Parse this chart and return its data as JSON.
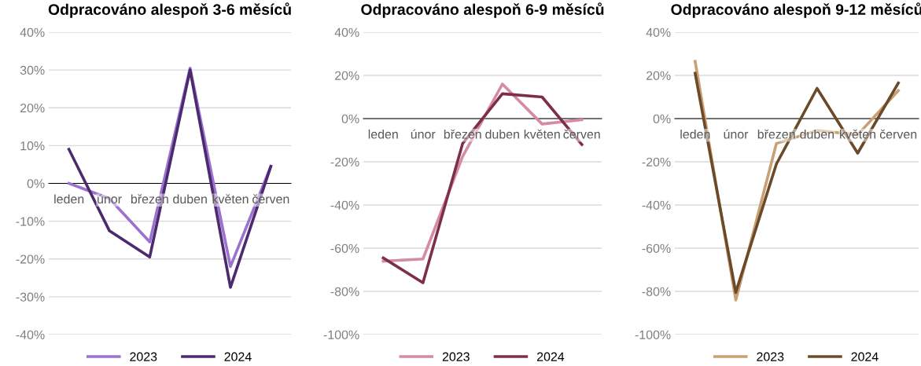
{
  "chart_data": [
    {
      "type": "line",
      "title": "Odpracováno alespoň 3-6 měsíců",
      "categories": [
        "leden",
        "únor",
        "březen",
        "duben",
        "květen",
        "červen"
      ],
      "series": [
        {
          "name": "2023",
          "color": "#9b72cf",
          "values": [
            0,
            -4,
            -15.5,
            30.5,
            -22,
            4.5
          ]
        },
        {
          "name": "2024",
          "color": "#4b2a6e",
          "values": [
            9,
            -12.5,
            -19.5,
            30,
            -27.5,
            4.5
          ]
        }
      ],
      "ylim": [
        -40,
        40
      ],
      "yticks": [
        {
          "value": -40,
          "label": "-40%"
        },
        {
          "value": -30,
          "label": "-30%"
        },
        {
          "value": -20,
          "label": "-20%"
        },
        {
          "value": -10,
          "label": "-10%"
        },
        {
          "value": 0,
          "label": "0%"
        },
        {
          "value": 10,
          "label": "10%"
        },
        {
          "value": 20,
          "label": "20%"
        },
        {
          "value": 30,
          "label": "30%"
        },
        {
          "value": 40,
          "label": "40%"
        }
      ],
      "grid": "y",
      "legend": "bottom",
      "marker": "none",
      "line_style": "solid"
    },
    {
      "type": "line",
      "title": "Odpracováno alespoň 6-9 měsíců",
      "categories": [
        "leden",
        "únor",
        "březen",
        "duben",
        "květen",
        "červen"
      ],
      "series": [
        {
          "name": "2023",
          "color": "#d48ba3",
          "values": [
            -66,
            -65,
            -17.5,
            16,
            -2.5,
            -0.5
          ]
        },
        {
          "name": "2024",
          "color": "#7e2e4d",
          "values": [
            -64.5,
            -76,
            -11.5,
            11.5,
            10,
            -12
          ]
        }
      ],
      "ylim": [
        -100,
        40
      ],
      "yticks": [
        {
          "value": -100,
          "label": "-100%"
        },
        {
          "value": -80,
          "label": "-80%"
        },
        {
          "value": -60,
          "label": "-60%"
        },
        {
          "value": -40,
          "label": "-40%"
        },
        {
          "value": -20,
          "label": "-20%"
        },
        {
          "value": 0,
          "label": "0%"
        },
        {
          "value": 20,
          "label": "20%"
        },
        {
          "value": 40,
          "label": "40%"
        }
      ],
      "grid": "y",
      "legend": "bottom",
      "marker": "none",
      "line_style": "solid"
    },
    {
      "type": "line",
      "title": "Odpracováno alespoň 9-12 měsíců",
      "categories": [
        "leden",
        "únor",
        "březen",
        "duben",
        "květen",
        "červen"
      ],
      "series": [
        {
          "name": "2023",
          "color": "#c9a074",
          "values": [
            26.5,
            -84,
            -11.5,
            -5.5,
            -7.5,
            13
          ]
        },
        {
          "name": "2024",
          "color": "#6b4a2a",
          "values": [
            21,
            -80.5,
            -21,
            14,
            -16,
            16.5
          ]
        }
      ],
      "ylim": [
        -100,
        40
      ],
      "yticks": [
        {
          "value": -100,
          "label": "-100%"
        },
        {
          "value": -80,
          "label": "-80%"
        },
        {
          "value": -60,
          "label": "-60%"
        },
        {
          "value": -40,
          "label": "-40%"
        },
        {
          "value": -20,
          "label": "-20%"
        },
        {
          "value": 0,
          "label": "0%"
        },
        {
          "value": 20,
          "label": "20%"
        },
        {
          "value": 40,
          "label": "40%"
        }
      ],
      "grid": "y",
      "legend": "bottom",
      "marker": "none",
      "line_style": "solid"
    }
  ]
}
